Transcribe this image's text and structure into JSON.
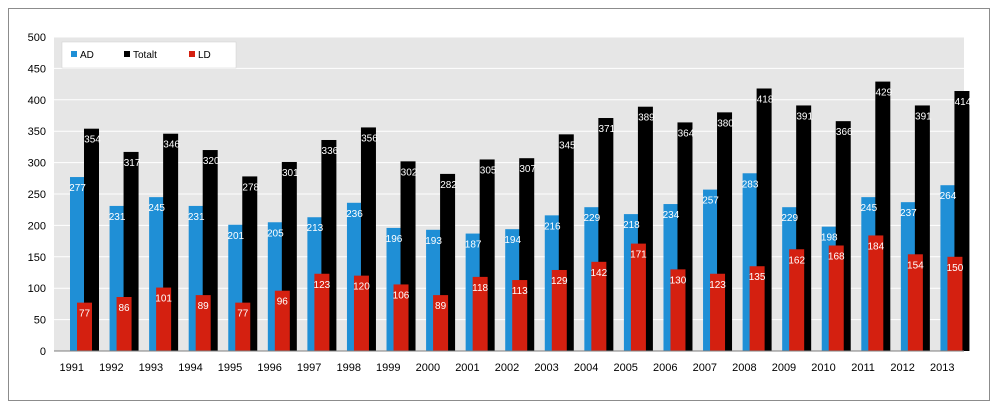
{
  "chart_data": {
    "type": "bar",
    "title": "",
    "xlabel": "",
    "ylabel": "",
    "ylim": [
      0,
      500
    ],
    "yticks": [
      0,
      50,
      100,
      150,
      200,
      250,
      300,
      350,
      400,
      450,
      500
    ],
    "grid": true,
    "legend_position": "top-left",
    "categories": [
      "1991",
      "1992",
      "1993",
      "1994",
      "1995",
      "1996",
      "1997",
      "1998",
      "1999",
      "2000",
      "2001",
      "2002",
      "2003",
      "2004",
      "2005",
      "2006",
      "2007",
      "2008",
      "2009",
      "2010",
      "2011",
      "2012",
      "2013"
    ],
    "series": [
      {
        "name": "AD",
        "color": "#1f8fd6",
        "values": [
          277,
          231,
          245,
          231,
          201,
          205,
          213,
          236,
          196,
          193,
          187,
          194,
          216,
          229,
          218,
          234,
          257,
          283,
          229,
          198,
          245,
          237,
          264
        ]
      },
      {
        "name": "Totalt",
        "color": "#000000",
        "values": [
          354,
          317,
          346,
          320,
          278,
          301,
          336,
          356,
          302,
          282,
          305,
          307,
          345,
          371,
          389,
          364,
          380,
          418,
          391,
          366,
          429,
          391,
          414
        ]
      },
      {
        "name": "LD",
        "color": "#d42010",
        "values": [
          77,
          86,
          101,
          89,
          77,
          96,
          123,
          120,
          106,
          89,
          118,
          113,
          129,
          142,
          171,
          130,
          123,
          135,
          162,
          168,
          184,
          154,
          150
        ]
      }
    ]
  }
}
